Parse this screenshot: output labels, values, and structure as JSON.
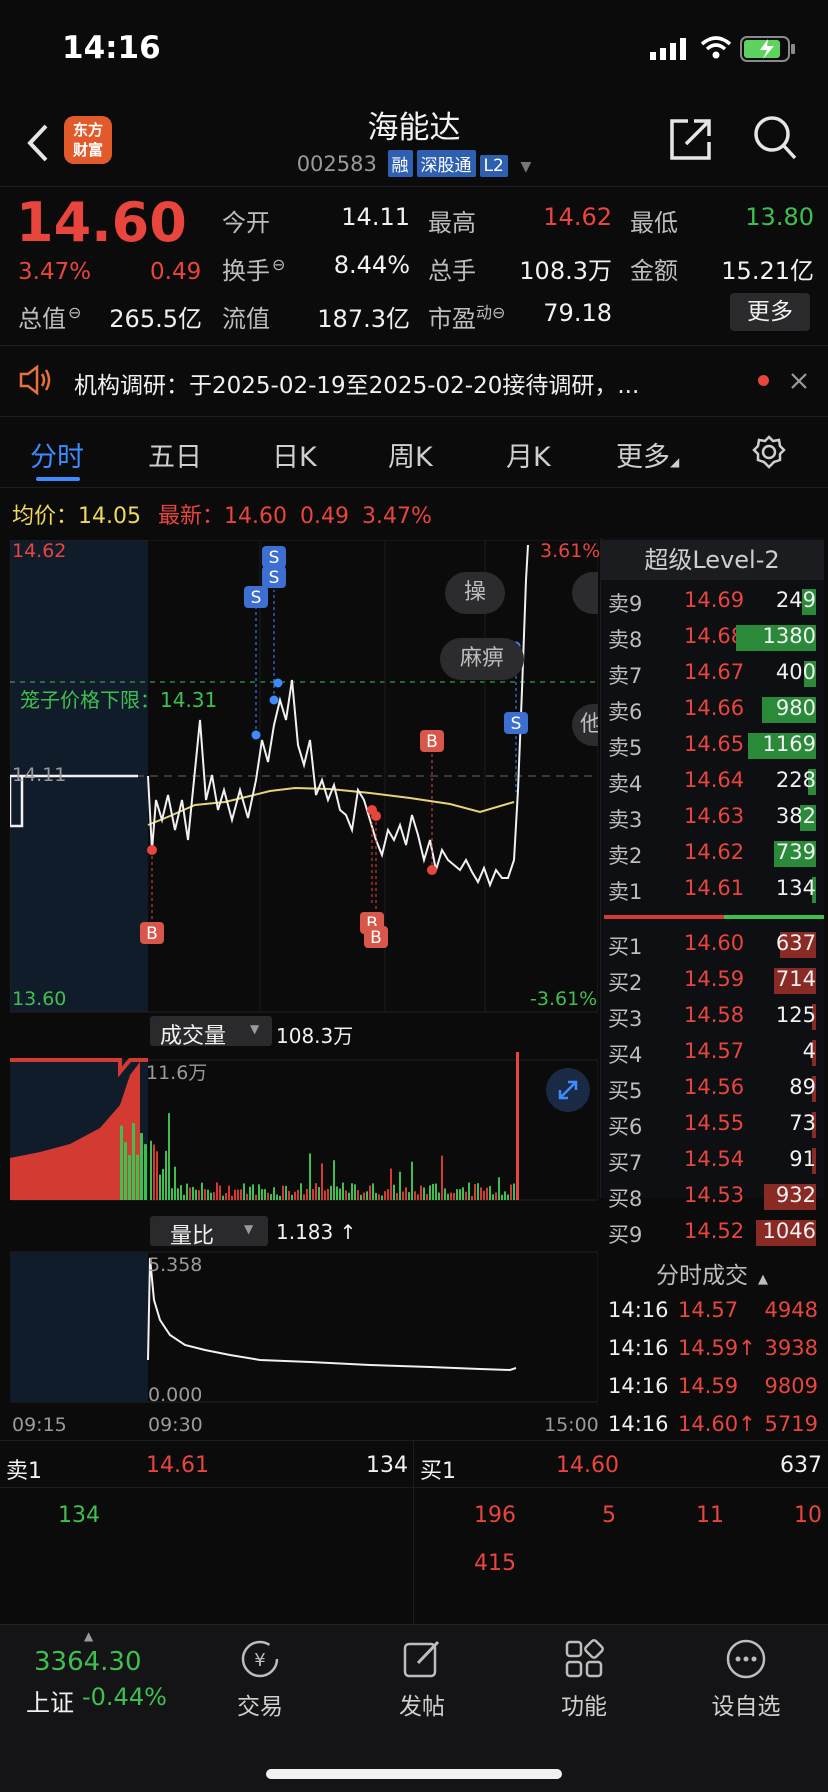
{
  "status_bar": {
    "time": "14:16"
  },
  "header": {
    "logo_text": "东方财富",
    "name": "海能达",
    "code": "002583",
    "tags": [
      "融",
      "深股通",
      "L2"
    ]
  },
  "quote": {
    "price": "14.60",
    "change_pct": "3.47%",
    "change": "0.49",
    "open_label": "今开",
    "open": "14.11",
    "high_label": "最高",
    "high": "14.62",
    "low_label": "最低",
    "low": "13.80",
    "turnover_label": "换手",
    "turnover": "8.44%",
    "volume_label": "总手",
    "volume": "108.3万",
    "amount_label": "金额",
    "amount": "15.21亿",
    "mktcap_label": "总值",
    "mktcap": "265.5亿",
    "float_label": "流值",
    "float": "187.3亿",
    "pe_label": "市盈",
    "pe_sup": "动",
    "pe": "79.18",
    "more_button": "更多"
  },
  "notice": {
    "text": "机构调研：于2025-02-19至2025-02-20接待调研，..."
  },
  "tabs": [
    "分时",
    "五日",
    "日K",
    "周K",
    "月K",
    "更多"
  ],
  "active_tab": "分时",
  "price_line": {
    "avg_label": "均价：",
    "avg": "14.05",
    "latest_label": "最新：",
    "latest": "14.60",
    "latest_change": "0.49",
    "latest_pct": "3.47%"
  },
  "chart_labels": {
    "top_price": "14.62",
    "top_pct": "3.61%",
    "bottom_price": "13.60",
    "bottom_pct": "-3.61%",
    "prev_close": "14.11",
    "limit_label": "笼子价格下限：14.31",
    "bubble_1": "操",
    "bubble_2": "麻痹",
    "bubble_3": "他",
    "time_start": "09:15",
    "time_open": "09:30",
    "time_end": "15:00"
  },
  "volume_panel": {
    "label": "成交量",
    "total": "108.3万",
    "max_label": "11.6万"
  },
  "ratio_panel": {
    "label": "量比",
    "value": "1.183 ↑",
    "max": "5.358",
    "min": "0.000"
  },
  "colors": {
    "up": "#e8453c",
    "down": "#3fbf4f",
    "avg_line": "#e6d37a",
    "accent": "#3d8bff"
  },
  "order_book": {
    "title": "超级Level-2",
    "asks": [
      {
        "label": "卖9",
        "price": "14.69",
        "vol": "249",
        "fill": 0.07
      },
      {
        "label": "卖8",
        "price": "14.68",
        "vol": "1380",
        "fill": 0.4
      },
      {
        "label": "卖7",
        "price": "14.67",
        "vol": "400",
        "fill": 0.06
      },
      {
        "label": "卖6",
        "price": "14.66",
        "vol": "980",
        "fill": 0.27
      },
      {
        "label": "卖5",
        "price": "14.65",
        "vol": "1169",
        "fill": 0.34
      },
      {
        "label": "卖4",
        "price": "14.64",
        "vol": "228",
        "fill": 0.04
      },
      {
        "label": "卖3",
        "price": "14.63",
        "vol": "382",
        "fill": 0.08
      },
      {
        "label": "卖2",
        "price": "14.62",
        "vol": "739",
        "fill": 0.21
      },
      {
        "label": "卖1",
        "price": "14.61",
        "vol": "134",
        "fill": 0.02
      }
    ],
    "bids": [
      {
        "label": "买1",
        "price": "14.60",
        "vol": "637",
        "fill": 0.18
      },
      {
        "label": "买2",
        "price": "14.59",
        "vol": "714",
        "fill": 0.21
      },
      {
        "label": "买3",
        "price": "14.58",
        "vol": "125",
        "fill": 0.02
      },
      {
        "label": "买4",
        "price": "14.57",
        "vol": "4",
        "fill": 0.0
      },
      {
        "label": "买5",
        "price": "14.56",
        "vol": "89",
        "fill": 0.01
      },
      {
        "label": "买6",
        "price": "14.55",
        "vol": "73",
        "fill": 0.01
      },
      {
        "label": "买7",
        "price": "14.54",
        "vol": "91",
        "fill": 0.01
      },
      {
        "label": "买8",
        "price": "14.53",
        "vol": "932",
        "fill": 0.26
      },
      {
        "label": "买9",
        "price": "14.52",
        "vol": "1046",
        "fill": 0.3
      }
    ]
  },
  "trades": {
    "title": "分时成交",
    "rows": [
      {
        "time": "14:16",
        "price": "14.57",
        "vol": "4948"
      },
      {
        "time": "14:16",
        "price": "14.59↑",
        "vol": "3938"
      },
      {
        "time": "14:16",
        "price": "14.59",
        "vol": "9809"
      },
      {
        "time": "14:16",
        "price": "14.60↑",
        "vol": "5719"
      }
    ]
  },
  "queue": {
    "sell_label": "卖1",
    "sell_price": "14.61",
    "sell_vol": "134",
    "buy_label": "买1",
    "buy_price": "14.60",
    "buy_vol": "637",
    "sell_orders": [
      "134"
    ],
    "buy_orders": [
      "196",
      "5",
      "11",
      "10",
      "415"
    ]
  },
  "bottom_nav": {
    "index_value": "3364.30",
    "index_name": "上证",
    "index_change": "-0.44%",
    "items": [
      "交易",
      "发帖",
      "功能",
      "设自选"
    ]
  }
}
